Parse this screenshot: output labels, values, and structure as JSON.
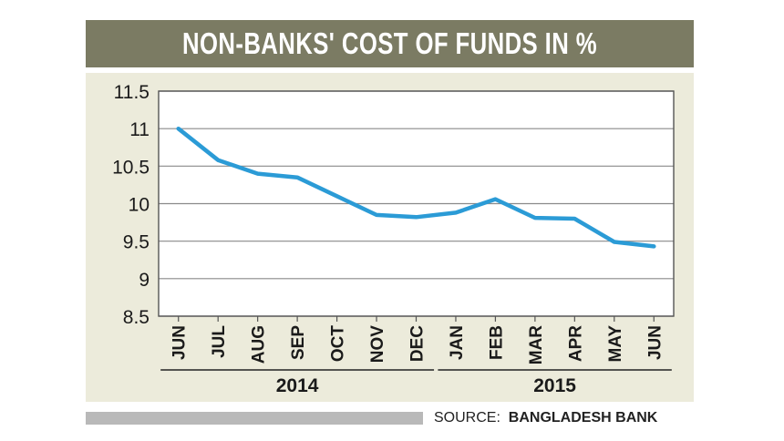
{
  "header": {
    "title": "NON-BANKS' COST OF FUNDS IN %"
  },
  "source": {
    "label": "SOURCE:",
    "name": "BANGLADESH BANK"
  },
  "colors": {
    "title_bg": "#7b7b63",
    "panel_bg": "#ecebdb",
    "line": "#2b9bd6",
    "grid": "#8a8a8a",
    "source_bar": "#b9b9b9"
  },
  "chart_data": {
    "type": "line",
    "title": "NON-BANKS' COST OF FUNDS IN %",
    "categories": [
      "JUN",
      "JUL",
      "AUG",
      "SEP",
      "OCT",
      "NOV",
      "DEC",
      "JAN",
      "FEB",
      "MAR",
      "APR",
      "MAY",
      "JUN"
    ],
    "year_groups": [
      {
        "label": "2014",
        "from": 0,
        "to": 6
      },
      {
        "label": "2015",
        "from": 7,
        "to": 12
      }
    ],
    "series": [
      {
        "values": [
          11.0,
          10.58,
          10.4,
          10.35,
          10.1,
          9.85,
          9.82,
          9.88,
          10.06,
          9.81,
          9.8,
          9.49,
          9.43
        ]
      }
    ],
    "ylim": [
      8.5,
      11.5
    ],
    "yticks": [
      8.5,
      9,
      9.5,
      10,
      10.5,
      11,
      11.5
    ],
    "grid": true,
    "legend": "none"
  }
}
